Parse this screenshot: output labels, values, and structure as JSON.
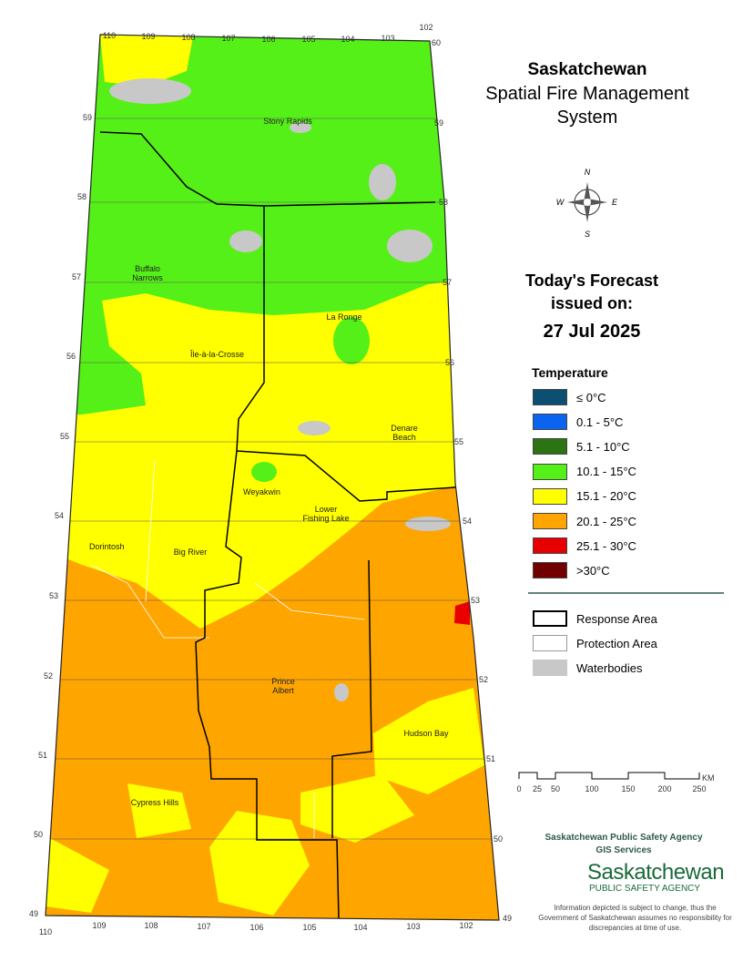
{
  "title": {
    "lines": [
      "Saskatchewan",
      "Spatial Fire Management",
      "System"
    ]
  },
  "forecast": {
    "heading": "Today's Forecast",
    "issued": "issued on:",
    "date": "27 Jul 2025"
  },
  "legend": {
    "title": "Temperature",
    "items": [
      {
        "label": "≤ 0°C",
        "color": "#0d4f73"
      },
      {
        "label": "0.1 - 5°C",
        "color": "#0a64f0"
      },
      {
        "label": "5.1 - 10°C",
        "color": "#2c7314"
      },
      {
        "label": "10.1 - 15°C",
        "color": "#55f018"
      },
      {
        "label": "15.1 - 20°C",
        "color": "#ffff00"
      },
      {
        "label": "20.1 - 25°C",
        "color": "#ffa500"
      },
      {
        "label": "25.1 - 30°C",
        "color": "#e80000"
      },
      {
        "label": ">30°C",
        "color": "#720000"
      }
    ]
  },
  "boundaries": [
    "Response Area",
    "Protection Area",
    "Waterbodies"
  ],
  "scale": {
    "ticks": [
      "0",
      "25",
      "50",
      "100",
      "150",
      "200",
      "250"
    ],
    "unit": "KM"
  },
  "compass": {
    "n": "N",
    "e": "E",
    "s": "S",
    "w": "W"
  },
  "agency": {
    "name": "Saskatchewan Public Safety Agency",
    "unit": "GIS  Services",
    "logo": "Saskatchewan",
    "logo_sub": "PUBLIC SAFETY AGENCY",
    "disclaimer": "Information depicted is subject to change, thus the Government of Saskatchewan assumes no responsibility for discrepancies at time of use."
  },
  "places": [
    "Stony Rapids",
    "Buffalo Narrows",
    "La Ronge",
    "Île-à-la-Crosse",
    "Denare Beach",
    "Weyakwin",
    "Lower Fishing Lake",
    "Dorintosh",
    "Big River",
    "Prince Albert",
    "Hudson Bay",
    "Cypress Hills"
  ],
  "longitudes": {
    "top": [
      "110",
      "109",
      "108",
      "107",
      "106",
      "105",
      "104",
      "103",
      "102"
    ],
    "bottom": [
      "110",
      "109",
      "108",
      "107",
      "106",
      "105",
      "104",
      "103",
      "102"
    ]
  },
  "latitudes": {
    "left": [
      "59",
      "58",
      "57",
      "56",
      "55",
      "54",
      "53",
      "52",
      "51",
      "50",
      "49"
    ],
    "right": [
      "60",
      "59",
      "58",
      "57",
      "56",
      "55",
      "54",
      "53",
      "52",
      "51",
      "50",
      "49"
    ]
  }
}
